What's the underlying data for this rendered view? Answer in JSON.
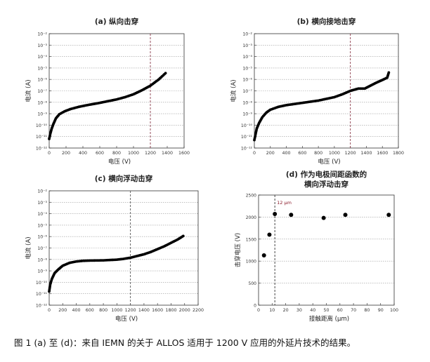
{
  "caption": "图 1 (a) 至 (d)：来自 IEMN 的关于 ALLOS 适用于 1200 V 应用的外延片技术的结果。",
  "chart_data": [
    {
      "type": "scatter",
      "title": "(a)  纵向击穿",
      "xlabel": "电压  (V)",
      "ylabel": "电流  (A)",
      "xlim": [
        0,
        1600
      ],
      "xticks": [
        0,
        200,
        400,
        600,
        800,
        1000,
        1200,
        1400,
        1600
      ],
      "ylim": [
        -12,
        -2
      ],
      "y_scale": "log",
      "yticks": [
        "10⁻¹²",
        "10⁻¹¹",
        "10⁻¹⁰",
        "10⁻⁹",
        "10⁻⁸",
        "10⁻⁷",
        "10⁻⁶",
        "10⁻⁵",
        "10⁻⁴",
        "10⁻³",
        "10⁻²"
      ],
      "grid": "horizontal dotted",
      "reference_line": {
        "x": 1200,
        "color": "#8b3a4a"
      },
      "series": [
        {
          "color": "#000000",
          "x": [
            0,
            15,
            30,
            50,
            80,
            120,
            180,
            250,
            350,
            450,
            600,
            800,
            900,
            1000,
            1100,
            1200,
            1300,
            1380
          ],
          "y": [
            -11.2,
            -10.7,
            -10.3,
            -9.9,
            -9.4,
            -9.05,
            -8.8,
            -8.6,
            -8.4,
            -8.25,
            -8.05,
            -7.75,
            -7.55,
            -7.3,
            -6.95,
            -6.55,
            -6.0,
            -5.45
          ]
        }
      ]
    },
    {
      "type": "scatter",
      "title": "(b)  横向接地击穿",
      "xlabel": "电压  (V)",
      "ylabel": "电流  (A)",
      "xlim": [
        0,
        1800
      ],
      "xticks": [
        0,
        200,
        400,
        600,
        800,
        1000,
        1200,
        1400,
        1600,
        1800
      ],
      "ylim": [
        -12,
        -2
      ],
      "y_scale": "log",
      "yticks": [
        "10⁻¹²",
        "10⁻¹¹",
        "10⁻¹⁰",
        "10⁻⁹",
        "10⁻⁸",
        "10⁻⁷",
        "10⁻⁶",
        "10⁻⁵",
        "10⁻⁴",
        "10⁻³",
        "10⁻²"
      ],
      "grid": "horizontal dotted",
      "reference_line": {
        "x": 1200,
        "color": "#8b3a4a"
      },
      "series": [
        {
          "color": "#000000",
          "x": [
            0,
            15,
            30,
            60,
            100,
            150,
            200,
            300,
            400,
            600,
            800,
            1000,
            1100,
            1200,
            1300,
            1380,
            1450,
            1520,
            1600,
            1660,
            1680
          ],
          "y": [
            -11.3,
            -10.8,
            -10.3,
            -9.8,
            -9.3,
            -8.9,
            -8.65,
            -8.4,
            -8.25,
            -8.05,
            -7.85,
            -7.55,
            -7.3,
            -7.0,
            -6.8,
            -6.8,
            -6.55,
            -6.3,
            -6.05,
            -5.85,
            -5.4
          ]
        }
      ]
    },
    {
      "type": "scatter",
      "title": "(c)  横向浮动击穿",
      "xlabel": "电压  (V)",
      "ylabel": "电流  (A)",
      "xlim": [
        0,
        2200
      ],
      "xticks": [
        0,
        200,
        400,
        600,
        800,
        1000,
        1200,
        1400,
        1600,
        1800,
        2000,
        2200
      ],
      "ylim": [
        -12,
        -2
      ],
      "y_scale": "log",
      "yticks": [
        "10⁻¹²",
        "10⁻¹¹",
        "10⁻¹⁰",
        "10⁻⁹",
        "10⁻⁸",
        "10⁻⁷",
        "10⁻⁶",
        "10⁻⁵",
        "10⁻⁴",
        "10⁻³",
        "10⁻²"
      ],
      "grid": "horizontal dotted",
      "reference_line": {
        "x": 1200,
        "color": "#555555"
      },
      "series": [
        {
          "color": "#000000",
          "x": [
            0,
            15,
            40,
            80,
            130,
            200,
            300,
            400,
            500,
            600,
            800,
            1000,
            1100,
            1200,
            1300,
            1400,
            1500,
            1600,
            1700,
            1800,
            1900,
            1980
          ],
          "y": [
            -10.8,
            -10.2,
            -9.7,
            -9.2,
            -8.9,
            -8.55,
            -8.3,
            -8.18,
            -8.12,
            -8.1,
            -8.08,
            -8.02,
            -7.95,
            -7.85,
            -7.7,
            -7.55,
            -7.35,
            -7.1,
            -6.85,
            -6.55,
            -6.25,
            -5.95
          ]
        }
      ]
    },
    {
      "type": "scatter",
      "title": "(d)  作为电极间距函数的",
      "title_line2": "横向浮动击穿",
      "xlabel": "接触距离  (μm)",
      "ylabel": "击穿电压  (V)",
      "xlim": [
        0,
        100
      ],
      "xticks": [
        0,
        10,
        20,
        30,
        40,
        50,
        60,
        70,
        80,
        90,
        100
      ],
      "ylim": [
        0,
        2500
      ],
      "yticks": [
        0,
        500,
        1000,
        1500,
        2000,
        2500
      ],
      "grid": "horizontal dotted",
      "reference_line": {
        "x": 12,
        "color": "#333333"
      },
      "annotation": "12 μm",
      "series": [
        {
          "color": "#000000",
          "x": [
            4,
            8,
            12,
            24,
            48,
            64,
            96
          ],
          "y": [
            1130,
            1600,
            2070,
            2050,
            1980,
            2050,
            2050
          ]
        }
      ]
    }
  ]
}
